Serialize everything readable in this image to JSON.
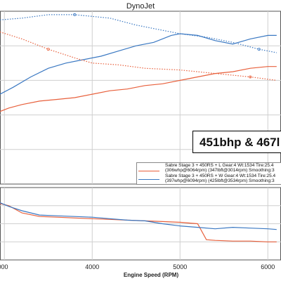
{
  "title": "DynoJet",
  "overlay_text": "451bhp & 467l",
  "legend": [
    {
      "line1": "Sabre Stage 3 + 450RS + L Gear:4 Wt:1534 Tire:25.4",
      "line2": "(306whp@6064rpm) (347lbft@3014rpm) Smoothing:3",
      "color": "#e8603c"
    },
    {
      "line1": "Sabre Stage 3 + 450RS + W Gear:4 Wt:1534 Tire:25.4",
      "line2": "(397whp@6094rpm) (425lbft@3534rpm) Smoothing:3",
      "color": "#3a78c2"
    }
  ],
  "chart_data": {
    "type": "line",
    "xlabel": "Engine Speed (RPM)",
    "x_ticks": [
      "000",
      "4000",
      "5000",
      "6000"
    ],
    "xlim": [
      2950,
      6150
    ],
    "top_panel_ylim": [
      0,
      100
    ],
    "bottom_panel_ylim": [
      0,
      100
    ],
    "series": [
      {
        "panel": "top",
        "style": "solid",
        "color": "#e8603c",
        "x": [
          2950,
          3050,
          3200,
          3400,
          3600,
          3800,
          4000,
          4200,
          4400,
          4600,
          4800,
          5000,
          5200,
          5400,
          5600,
          5800,
          6000,
          6100
        ],
        "y": [
          42,
          44,
          46,
          48,
          49,
          50,
          52,
          54,
          55,
          57,
          58,
          60,
          62,
          64,
          65,
          67,
          68,
          68
        ]
      },
      {
        "panel": "top",
        "style": "solid",
        "color": "#3a78c2",
        "x": [
          2950,
          3100,
          3300,
          3500,
          3700,
          3900,
          4100,
          4300,
          4500,
          4700,
          4900,
          5000,
          5200,
          5400,
          5600,
          5800,
          6000,
          6100
        ],
        "y": [
          52,
          56,
          62,
          67,
          70,
          72,
          74,
          77,
          80,
          82,
          86,
          87,
          86,
          83,
          81,
          84,
          86,
          86
        ]
      },
      {
        "panel": "top",
        "style": "dotted",
        "color": "#e8603c",
        "x": [
          2950,
          3200,
          3500,
          3800,
          4000,
          4300,
          4600,
          5000,
          5400,
          5800,
          6100
        ],
        "y": [
          88,
          84,
          78,
          73,
          70,
          69,
          67,
          66,
          64,
          62,
          60
        ]
      },
      {
        "panel": "top",
        "style": "dotted",
        "color": "#3a78c2",
        "x": [
          2950,
          3200,
          3500,
          3800,
          4200,
          4500,
          4800,
          5000,
          5300,
          5600,
          5900,
          6100
        ],
        "y": [
          95,
          96,
          98,
          98,
          96,
          92,
          89,
          87,
          85,
          82,
          78,
          76
        ]
      },
      {
        "panel": "bottom",
        "style": "solid",
        "color": "#e8603c",
        "x": [
          2950,
          3050,
          3200,
          3400,
          3600,
          3800,
          4000,
          4200,
          4400,
          4600,
          4800,
          5000,
          5200,
          5300,
          5400,
          5600,
          5800,
          6000,
          6100
        ],
        "y": [
          78,
          75,
          65,
          60,
          59,
          58,
          57,
          56,
          55,
          54,
          53,
          52,
          50,
          28,
          27,
          26,
          26,
          25,
          25
        ]
      },
      {
        "panel": "bottom",
        "style": "solid",
        "color": "#3a78c2",
        "x": [
          2950,
          3050,
          3200,
          3400,
          3600,
          3800,
          4000,
          4200,
          4400,
          4600,
          4800,
          5000,
          5200,
          5400,
          5600,
          5800,
          6000,
          6100
        ],
        "y": [
          79,
          74,
          68,
          62,
          61,
          60,
          59,
          57,
          55,
          54,
          50,
          47,
          45,
          43,
          45,
          44,
          43,
          42
        ]
      }
    ]
  }
}
